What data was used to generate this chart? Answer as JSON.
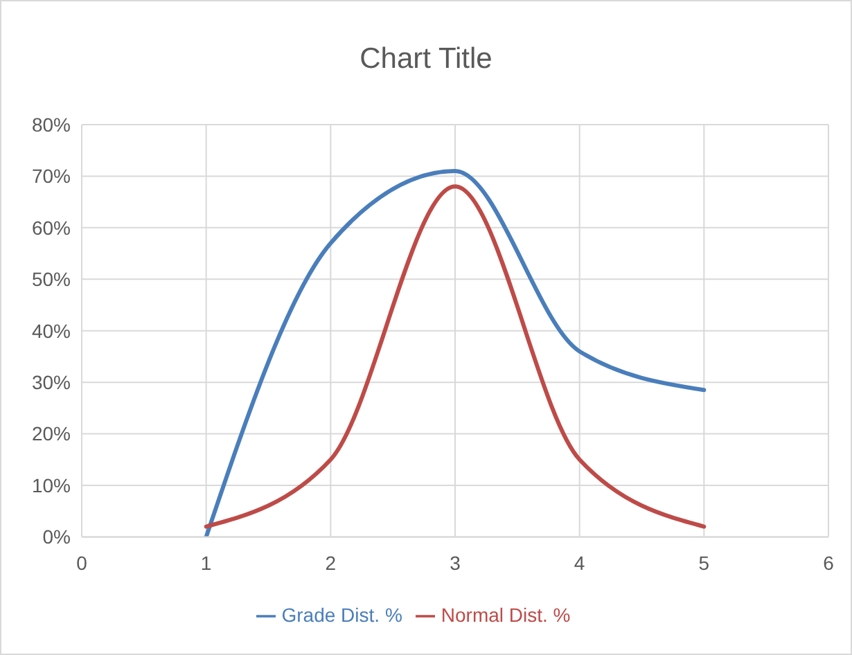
{
  "chart_data": {
    "type": "line",
    "title": "Chart Title",
    "x": [
      1,
      2,
      3,
      4,
      5
    ],
    "series": [
      {
        "name": "Grade Dist. %",
        "color": "#4a7ebb",
        "values": [
          0,
          57,
          71,
          36,
          28.5
        ]
      },
      {
        "name": "Normal Dist. %",
        "color": "#be4b48",
        "values": [
          2,
          15,
          68,
          15,
          2
        ]
      }
    ],
    "xlim": [
      0,
      6
    ],
    "xticks": [
      0,
      1,
      2,
      3,
      4,
      5,
      6
    ],
    "ylim": [
      0,
      80
    ],
    "yticks": [
      {
        "value": 0,
        "label": "0%"
      },
      {
        "value": 10,
        "label": "10%"
      },
      {
        "value": 20,
        "label": "20%"
      },
      {
        "value": 30,
        "label": "30%"
      },
      {
        "value": 40,
        "label": "40%"
      },
      {
        "value": 50,
        "label": "50%"
      },
      {
        "value": 60,
        "label": "60%"
      },
      {
        "value": 70,
        "label": "70%"
      },
      {
        "value": 80,
        "label": "80%"
      }
    ],
    "grid": true,
    "legend": "bottom",
    "marker": "none",
    "line_style": "solid"
  }
}
